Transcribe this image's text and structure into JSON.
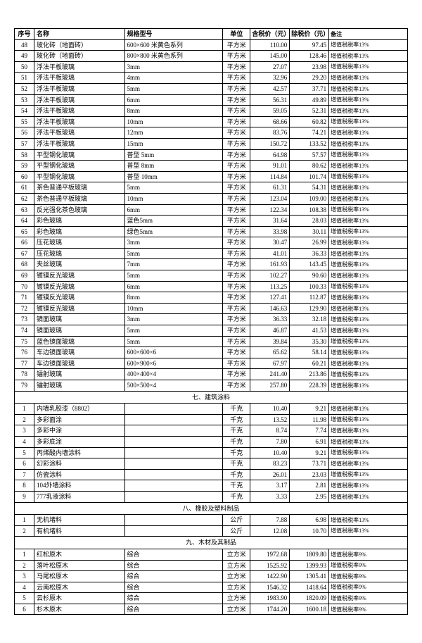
{
  "columns": [
    "序号",
    "名称",
    "规格型号",
    "单位",
    "含税价（元）",
    "除税价（元）",
    "备注"
  ],
  "colClasses": [
    "col-seq",
    "col-name",
    "col-spec",
    "col-unit",
    "col-price1",
    "col-price2",
    "col-note"
  ],
  "rows": [
    {
      "seq": "48",
      "name": "玻化砖（地面砖）",
      "spec": "600×600 米黄色系列",
      "unit": "平方米",
      "p1": "110.00",
      "p2": "97.45",
      "note": "增值税税率13%"
    },
    {
      "seq": "49",
      "name": "玻化砖（地面砖）",
      "spec": "800×800 米黄色系列",
      "unit": "平方米",
      "p1": "145.00",
      "p2": "128.46",
      "note": "增值税税率13%"
    },
    {
      "seq": "50",
      "name": "浮法平板玻璃",
      "spec": "3mm",
      "unit": "平方米",
      "p1": "27.07",
      "p2": "23.98",
      "note": "增值税税率13%"
    },
    {
      "seq": "51",
      "name": "浮法平板玻璃",
      "spec": "4mm",
      "unit": "平方米",
      "p1": "32.96",
      "p2": "29.20",
      "note": "增值税税率13%"
    },
    {
      "seq": "52",
      "name": "浮法平板玻璃",
      "spec": "5mm",
      "unit": "平方米",
      "p1": "42.57",
      "p2": "37.71",
      "note": "增值税税率13%"
    },
    {
      "seq": "53",
      "name": "浮法平板玻璃",
      "spec": "6mm",
      "unit": "平方米",
      "p1": "56.31",
      "p2": "49.89",
      "note": "增值税税率13%"
    },
    {
      "seq": "54",
      "name": "浮法平板玻璃",
      "spec": "8mm",
      "unit": "平方米",
      "p1": "59.05",
      "p2": "52.31",
      "note": "增值税税率13%"
    },
    {
      "seq": "55",
      "name": "浮法平板玻璃",
      "spec": "10mm",
      "unit": "平方米",
      "p1": "68.66",
      "p2": "60.82",
      "note": "增值税税率13%"
    },
    {
      "seq": "56",
      "name": "浮法平板玻璃",
      "spec": "12mm",
      "unit": "平方米",
      "p1": "83.76",
      "p2": "74.21",
      "note": "增值税税率13%"
    },
    {
      "seq": "57",
      "name": "浮法平板玻璃",
      "spec": "15mm",
      "unit": "平方米",
      "p1": "150.72",
      "p2": "133.52",
      "note": "增值税税率13%"
    },
    {
      "seq": "58",
      "name": "平型钢化玻璃",
      "spec": "普型 5mm",
      "unit": "平方米",
      "p1": "64.98",
      "p2": "57.57",
      "note": "增值税税率13%"
    },
    {
      "seq": "59",
      "name": "平型钢化玻璃",
      "spec": "普型 8mm",
      "unit": "平方米",
      "p1": "91.01",
      "p2": "80.62",
      "note": "增值税税率13%"
    },
    {
      "seq": "60",
      "name": "平型钢化玻璃",
      "spec": "普型 10mm",
      "unit": "平方米",
      "p1": "114.84",
      "p2": "101.74",
      "note": "增值税税率13%"
    },
    {
      "seq": "61",
      "name": "茶色普通平板玻璃",
      "spec": "5mm",
      "unit": "平方米",
      "p1": "61.31",
      "p2": "54.31",
      "note": "增值税税率13%"
    },
    {
      "seq": "62",
      "name": "茶色普通平板玻璃",
      "spec": "10mm",
      "unit": "平方米",
      "p1": "123.04",
      "p2": "109.00",
      "note": "增值税税率13%"
    },
    {
      "seq": "63",
      "name": "反光强化茶色玻璃",
      "spec": "6mm",
      "unit": "平方米",
      "p1": "122.34",
      "p2": "108.38",
      "note": "增值税税率13%"
    },
    {
      "seq": "64",
      "name": "彩色玻璃",
      "spec": "蓝色5mm",
      "unit": "平方米",
      "p1": "31.64",
      "p2": "28.03",
      "note": "增值税税率13%"
    },
    {
      "seq": "65",
      "name": "彩色玻璃",
      "spec": "绿色5mm",
      "unit": "平方米",
      "p1": "33.98",
      "p2": "30.11",
      "note": "增值税税率13%"
    },
    {
      "seq": "66",
      "name": "压花玻璃",
      "spec": "3mm",
      "unit": "平方米",
      "p1": "30.47",
      "p2": "26.99",
      "note": "增值税税率13%"
    },
    {
      "seq": "67",
      "name": "压花玻璃",
      "spec": "5mm",
      "unit": "平方米",
      "p1": "41.01",
      "p2": "36.33",
      "note": "增值税税率13%"
    },
    {
      "seq": "68",
      "name": "夹丝玻璃",
      "spec": "7mm",
      "unit": "平方米",
      "p1": "161.93",
      "p2": "143.45",
      "note": "增值税税率13%"
    },
    {
      "seq": "69",
      "name": "镀镆反光玻璃",
      "spec": "5mm",
      "unit": "平方米",
      "p1": "102.27",
      "p2": "90.60",
      "note": "增值税税率13%"
    },
    {
      "seq": "70",
      "name": "镀镆反光玻璃",
      "spec": "6mm",
      "unit": "平方米",
      "p1": "113.25",
      "p2": "100.33",
      "note": "增值税税率13%"
    },
    {
      "seq": "71",
      "name": "镀镆反光玻璃",
      "spec": "8mm",
      "unit": "平方米",
      "p1": "127.41",
      "p2": "112.87",
      "note": "增值税税率13%"
    },
    {
      "seq": "72",
      "name": "镀镆反光玻璃",
      "spec": "10mm",
      "unit": "平方米",
      "p1": "146.63",
      "p2": "129.90",
      "note": "增值税税率13%"
    },
    {
      "seq": "73",
      "name": "镜面玻璃",
      "spec": "3mm",
      "unit": "平方米",
      "p1": "36.33",
      "p2": "32.18",
      "note": "增值税税率13%"
    },
    {
      "seq": "74",
      "name": "镜面玻璃",
      "spec": "5mm",
      "unit": "平方米",
      "p1": "46.87",
      "p2": "41.53",
      "note": "增值税税率13%"
    },
    {
      "seq": "75",
      "name": "蓝色镜面玻璃",
      "spec": "5mm",
      "unit": "平方米",
      "p1": "39.84",
      "p2": "35.30",
      "note": "增值税税率13%"
    },
    {
      "seq": "76",
      "name": "车边镜面玻璃",
      "spec": "600×600×6",
      "unit": "平方米",
      "p1": "65.62",
      "p2": "58.14",
      "note": "增值税税率13%"
    },
    {
      "seq": "77",
      "name": "车边镜面玻璃",
      "spec": "600×900×6",
      "unit": "平方米",
      "p1": "67.97",
      "p2": "60.21",
      "note": "增值税税率13%"
    },
    {
      "seq": "78",
      "name": "镭射玻璃",
      "spec": "400×400×4",
      "unit": "平方米",
      "p1": "241.40",
      "p2": "213.86",
      "note": "增值税税率13%"
    },
    {
      "seq": "79",
      "name": "镭射玻璃",
      "spec": "500×500×4",
      "unit": "平方米",
      "p1": "257.80",
      "p2": "228.39",
      "note": "增值税税率13%"
    },
    {
      "section": "七、建筑涂料"
    },
    {
      "seq": "1",
      "name": "内墙乳胶漆（8802）",
      "spec": "",
      "unit": "千克",
      "p1": "10.40",
      "p2": "9.21",
      "note": "增值税税率13%"
    },
    {
      "seq": "2",
      "name": "多彩面涂",
      "spec": "",
      "unit": "千克",
      "p1": "13.52",
      "p2": "11.98",
      "note": "增值税税率13%"
    },
    {
      "seq": "3",
      "name": "多彩中涂",
      "spec": "",
      "unit": "千克",
      "p1": "8.74",
      "p2": "7.74",
      "note": "增值税税率13%"
    },
    {
      "seq": "4",
      "name": "多彩底涂",
      "spec": "",
      "unit": "千克",
      "p1": "7.80",
      "p2": "6.91",
      "note": "增值税税率13%"
    },
    {
      "seq": "5",
      "name": "丙烯酸内墙涂料",
      "spec": "",
      "unit": "千克",
      "p1": "10.40",
      "p2": "9.21",
      "note": "增值税税率13%"
    },
    {
      "seq": "6",
      "name": "幻彩涂料",
      "spec": "",
      "unit": "千克",
      "p1": "83.23",
      "p2": "73.71",
      "note": "增值税税率13%"
    },
    {
      "seq": "7",
      "name": "仿瓷涂料",
      "spec": "",
      "unit": "千克",
      "p1": "26.01",
      "p2": "23.03",
      "note": "增值税税率13%"
    },
    {
      "seq": "8",
      "name": "104外墙涂料",
      "spec": "",
      "unit": "千克",
      "p1": "3.17",
      "p2": "2.81",
      "note": "增值税税率13%"
    },
    {
      "seq": "9",
      "name": "777乳液涂料",
      "spec": "",
      "unit": "千克",
      "p1": "3.33",
      "p2": "2.95",
      "note": "增值税税率13%"
    },
    {
      "section": "八、橡胶及塑料制品"
    },
    {
      "seq": "1",
      "name": "无机堵料",
      "spec": "",
      "unit": "公斤",
      "p1": "7.88",
      "p2": "6.98",
      "note": "增值税税率13%"
    },
    {
      "seq": "2",
      "name": "有机堵料",
      "spec": "",
      "unit": "公斤",
      "p1": "12.08",
      "p2": "10.70",
      "note": "增值税税率13%"
    },
    {
      "section": "九、木材及其制品"
    },
    {
      "seq": "1",
      "name": "红松原木",
      "spec": "综合",
      "unit": "立方米",
      "p1": "1972.68",
      "p2": "1809.80",
      "note": "增值税税率9%"
    },
    {
      "seq": "2",
      "name": "落叶松原木",
      "spec": "综合",
      "unit": "立方米",
      "p1": "1525.92",
      "p2": "1399.93",
      "note": "增值税税率9%"
    },
    {
      "seq": "3",
      "name": "马尾松原木",
      "spec": "综合",
      "unit": "立方米",
      "p1": "1422.90",
      "p2": "1305.41",
      "note": "增值税税率9%"
    },
    {
      "seq": "4",
      "name": "云南松原木",
      "spec": "综合",
      "unit": "立方米",
      "p1": "1546.32",
      "p2": "1418.64",
      "note": "增值税税率9%"
    },
    {
      "seq": "5",
      "name": "云杉原木",
      "spec": "综合",
      "unit": "立方米",
      "p1": "1983.90",
      "p2": "1820.09",
      "note": "增值税税率9%"
    },
    {
      "seq": "6",
      "name": "杉木原木",
      "spec": "综合",
      "unit": "立方米",
      "p1": "1744.20",
      "p2": "1600.18",
      "note": "增值税税率9%"
    }
  ]
}
